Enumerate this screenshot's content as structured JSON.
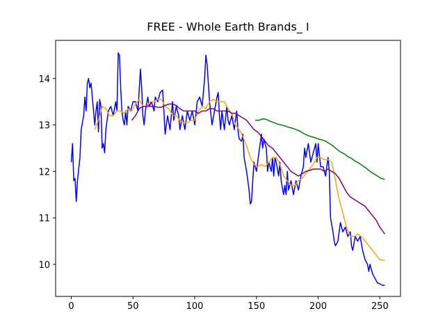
{
  "chart_data": {
    "type": "line",
    "title": "FREE - Whole Earth Brands_ I",
    "xlim": [
      -12.7,
      266.7
    ],
    "xticks": [
      0,
      50,
      100,
      150,
      200,
      250
    ],
    "ylim": [
      9.31,
      14.82
    ],
    "yticks": [
      10,
      11,
      12,
      13,
      14
    ],
    "series": [
      {
        "color": "#0000ff",
        "x": [
          0,
          1,
          2,
          3,
          4,
          5,
          7,
          8,
          10,
          11,
          12,
          13,
          14,
          15,
          16,
          17,
          18,
          19,
          20,
          21,
          22,
          23,
          24,
          25,
          26,
          27,
          28,
          30,
          32,
          34,
          36,
          37,
          38,
          39,
          40,
          41,
          42,
          43,
          44,
          45,
          46,
          48,
          50,
          52,
          54,
          56,
          57,
          58,
          59,
          60,
          62,
          63,
          65,
          67,
          68,
          70,
          72,
          74,
          75,
          76,
          77,
          78,
          80,
          82,
          83,
          85,
          87,
          88,
          90,
          92,
          94,
          96,
          98,
          100,
          102,
          104,
          106,
          108,
          109,
          110,
          111,
          112,
          114,
          116,
          118,
          119,
          120,
          121,
          122,
          124,
          126,
          127,
          128,
          130,
          132,
          134,
          135,
          136,
          138,
          139,
          140,
          142,
          144,
          145,
          146,
          147,
          148,
          149,
          150,
          152,
          153,
          154,
          155,
          156,
          158,
          159,
          160,
          162,
          163,
          164,
          165,
          166,
          168,
          169,
          170,
          172,
          173,
          174,
          175,
          176,
          178,
          180,
          182,
          184,
          186,
          188,
          189,
          190,
          192,
          194,
          196,
          198,
          199,
          200,
          202,
          204,
          206,
          208,
          209,
          210,
          212,
          213,
          214,
          216,
          218,
          220,
          222,
          224,
          226,
          227,
          228,
          230,
          232,
          234,
          236,
          238,
          240,
          241,
          242,
          244,
          246,
          248,
          250,
          252,
          254
        ],
        "values": [
          12.2,
          12.6,
          11.8,
          11.85,
          11.35,
          11.8,
          12.3,
          12.9,
          13.2,
          13.6,
          13.3,
          13.9,
          14.0,
          13.8,
          13.9,
          13.6,
          13.3,
          13.0,
          13.3,
          13.5,
          12.85,
          13.55,
          13.4,
          12.5,
          12.6,
          12.4,
          12.9,
          13.3,
          13.4,
          13.2,
          13.5,
          13.3,
          14.55,
          14.5,
          13.8,
          13.3,
          13.1,
          13.0,
          13.3,
          13.0,
          13.4,
          13.3,
          13.5,
          13.5,
          13.3,
          14.2,
          13.8,
          13.2,
          13.0,
          13.3,
          13.6,
          13.4,
          13.5,
          13.3,
          13.6,
          13.5,
          13.7,
          13.75,
          13.3,
          12.8,
          13.0,
          13.2,
          12.9,
          13.5,
          13.1,
          13.4,
          13.2,
          12.9,
          13.2,
          12.9,
          13.3,
          13.1,
          13.3,
          13.0,
          13.5,
          13.6,
          13.4,
          14.0,
          14.5,
          14.3,
          13.9,
          13.5,
          13.0,
          13.3,
          13.6,
          13.7,
          13.2,
          12.9,
          13.3,
          12.9,
          13.4,
          13.1,
          13.0,
          13.2,
          12.9,
          13.3,
          12.9,
          12.7,
          12.65,
          12.8,
          12.3,
          12.0,
          11.6,
          11.3,
          11.35,
          11.8,
          12.2,
          12.1,
          12.0,
          12.4,
          12.6,
          12.8,
          12.5,
          12.7,
          12.5,
          12.0,
          12.2,
          12.0,
          12.3,
          11.9,
          12.3,
          12.2,
          11.9,
          12.2,
          11.8,
          11.5,
          11.7,
          11.5,
          12.0,
          11.6,
          11.8,
          11.5,
          11.8,
          11.6,
          11.9,
          12.1,
          12.5,
          12.3,
          12.6,
          12.2,
          12.4,
          12.6,
          12.2,
          12.6,
          12.1,
          12.1,
          11.9,
          12.3,
          12.0,
          11.0,
          10.7,
          10.5,
          10.4,
          10.5,
          10.9,
          10.7,
          10.8,
          10.6,
          10.7,
          10.4,
          10.3,
          10.6,
          10.5,
          10.6,
          10.3,
          10.1,
          10.0,
          9.85,
          10.0,
          9.8,
          9.7,
          9.6,
          9.58,
          9.55,
          9.55
        ]
      },
      {
        "color": "#ffa500",
        "x": [
          19,
          22,
          25,
          28,
          31,
          34,
          37,
          40,
          43,
          46,
          49,
          52,
          55,
          58,
          61,
          64,
          67,
          70,
          73,
          76,
          79,
          82,
          85,
          88,
          91,
          94,
          97,
          100,
          103,
          106,
          109,
          112,
          115,
          118,
          121,
          124,
          127,
          130,
          133,
          136,
          139,
          142,
          145,
          148,
          151,
          154,
          157,
          160,
          163,
          166,
          169,
          172,
          175,
          178,
          181,
          184,
          187,
          190,
          193,
          196,
          199,
          202,
          205,
          208,
          211,
          214,
          217,
          220,
          223,
          226,
          229,
          232,
          235,
          238,
          241,
          244,
          247,
          250,
          254
        ],
        "values": [
          12.9,
          13.1,
          13.4,
          13.35,
          13.2,
          13.2,
          13.3,
          13.3,
          13.25,
          13.35,
          13.3,
          13.45,
          13.55,
          13.4,
          13.4,
          13.5,
          13.5,
          13.55,
          13.55,
          13.4,
          13.35,
          13.2,
          13.2,
          13.1,
          13.05,
          13.05,
          13.1,
          13.1,
          13.3,
          13.4,
          13.35,
          13.5,
          13.55,
          13.5,
          13.5,
          13.5,
          13.35,
          13.25,
          13.0,
          12.9,
          12.75,
          12.55,
          12.3,
          12.15,
          12.1,
          12.15,
          12.1,
          12.2,
          12.3,
          12.3,
          12.15,
          11.9,
          11.8,
          11.7,
          11.7,
          11.8,
          11.85,
          11.95,
          12.05,
          12.15,
          12.3,
          12.3,
          12.25,
          12.25,
          12.2,
          11.8,
          11.4,
          11.1,
          10.8,
          10.6,
          10.6,
          10.65,
          10.6,
          10.5,
          10.4,
          10.3,
          10.2,
          10.1,
          10.08
        ]
      },
      {
        "color": "#800080",
        "x": [
          49,
          52,
          55,
          58,
          61,
          64,
          67,
          70,
          73,
          76,
          79,
          82,
          85,
          88,
          91,
          94,
          97,
          100,
          103,
          106,
          109,
          112,
          115,
          118,
          121,
          124,
          127,
          130,
          133,
          136,
          139,
          142,
          145,
          148,
          151,
          154,
          157,
          160,
          163,
          166,
          169,
          172,
          175,
          178,
          181,
          184,
          187,
          190,
          193,
          196,
          199,
          202,
          205,
          208,
          211,
          214,
          217,
          220,
          223,
          226,
          229,
          232,
          235,
          238,
          241,
          244,
          247,
          250,
          254
        ],
        "values": [
          13.1,
          13.2,
          13.35,
          13.4,
          13.4,
          13.4,
          13.4,
          13.38,
          13.38,
          13.42,
          13.45,
          13.45,
          13.42,
          13.35,
          13.3,
          13.3,
          13.3,
          13.3,
          13.25,
          13.3,
          13.3,
          13.35,
          13.35,
          13.3,
          13.3,
          13.3,
          13.3,
          13.25,
          13.25,
          13.2,
          13.15,
          13.1,
          13.0,
          12.9,
          12.85,
          12.75,
          12.65,
          12.55,
          12.5,
          12.4,
          12.3,
          12.2,
          12.1,
          12.0,
          11.95,
          11.9,
          11.95,
          12.0,
          12.02,
          12.05,
          12.05,
          12.05,
          12.0,
          12.05,
          12.0,
          11.95,
          11.85,
          11.7,
          11.55,
          11.45,
          11.4,
          11.35,
          11.3,
          11.25,
          11.15,
          11.05,
          10.95,
          10.8,
          10.65
        ]
      },
      {
        "color": "#008000",
        "x": [
          149,
          152,
          155,
          158,
          161,
          164,
          167,
          170,
          173,
          176,
          179,
          182,
          185,
          188,
          191,
          194,
          197,
          200,
          203,
          206,
          209,
          212,
          215,
          218,
          221,
          224,
          227,
          230,
          233,
          236,
          239,
          242,
          245,
          248,
          251,
          254
        ],
        "values": [
          13.1,
          13.1,
          13.13,
          13.12,
          13.08,
          13.05,
          13.02,
          13.0,
          12.98,
          12.95,
          12.93,
          12.9,
          12.87,
          12.82,
          12.78,
          12.75,
          12.73,
          12.7,
          12.68,
          12.65,
          12.6,
          12.55,
          12.48,
          12.42,
          12.38,
          12.32,
          12.28,
          12.22,
          12.18,
          12.12,
          12.07,
          12.0,
          11.95,
          11.9,
          11.85,
          11.83
        ]
      }
    ]
  }
}
